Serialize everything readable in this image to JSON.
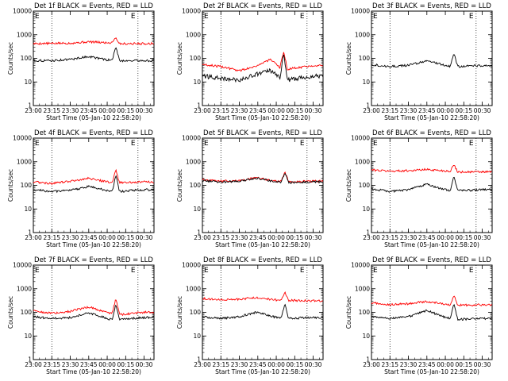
{
  "chart_data": [
    {
      "type": "line",
      "title": "Det 1f BLACK = Events, RED = LLD",
      "ylabel": "Counts/sec",
      "xlabel": "Start Time (05-Jan-10 22:58:20)",
      "x_ticks": [
        "23:00",
        "23:15",
        "23:30",
        "23:45",
        "00:00",
        "00:15",
        "00:30"
      ],
      "y_ticks": [
        "1",
        "10",
        "100",
        "1000",
        "10000"
      ],
      "ylim": [
        1,
        10000
      ],
      "y_scale": "log",
      "vlines": [
        "23:15",
        "00:25"
      ],
      "flags": [
        "E",
        "E"
      ],
      "series": [
        {
          "name": "RED",
          "color": "#ff0000",
          "x": [
            "23:00",
            "23:30",
            "23:45",
            "00:03",
            "00:07",
            "00:10",
            "00:30"
          ],
          "values": [
            420,
            440,
            500,
            450,
            750,
            420,
            420
          ]
        },
        {
          "name": "BLACK",
          "color": "#000000",
          "x": [
            "23:00",
            "23:15",
            "23:30",
            "23:45",
            "00:00",
            "00:04",
            "00:07",
            "00:10",
            "00:30"
          ],
          "values": [
            80,
            80,
            90,
            120,
            85,
            85,
            300,
            80,
            80
          ]
        }
      ]
    },
    {
      "type": "line",
      "title": "Det 2f BLACK = Events, RED = LLD",
      "ylabel": "Counts/sec",
      "xlabel": "Start Time (05-Jan-10 22:58:20)",
      "x_ticks": [
        "23:00",
        "23:15",
        "23:30",
        "23:45",
        "00:00",
        "00:15",
        "00:30"
      ],
      "y_ticks": [
        "1",
        "10",
        "100",
        "1000",
        "10000"
      ],
      "ylim": [
        1,
        10000
      ],
      "y_scale": "log",
      "vlines": [
        "23:15",
        "00:25"
      ],
      "flags": [
        "E",
        "E"
      ],
      "series": [
        {
          "name": "RED",
          "color": "#ff0000",
          "x": [
            "23:00",
            "23:15",
            "23:30",
            "23:45",
            "23:55",
            "00:03",
            "00:06",
            "00:09",
            "00:30"
          ],
          "values": [
            55,
            45,
            30,
            50,
            90,
            40,
            200,
            35,
            50
          ]
        },
        {
          "name": "BLACK",
          "color": "#000000",
          "x": [
            "23:00",
            "23:15",
            "23:30",
            "23:45",
            "23:55",
            "00:03",
            "00:06",
            "00:09",
            "00:30"
          ],
          "values": [
            18,
            14,
            12,
            22,
            30,
            15,
            170,
            12,
            18
          ]
        }
      ]
    },
    {
      "type": "line",
      "title": "Det 3f BLACK = Events, RED = LLD",
      "ylabel": "Counts/sec",
      "xlabel": "Start Time (05-Jan-10 22:58:20)",
      "x_ticks": [
        "23:00",
        "23:15",
        "23:30",
        "23:45",
        "00:00",
        "00:15",
        "00:30"
      ],
      "y_ticks": [
        "1",
        "10",
        "100",
        "1000",
        "10000"
      ],
      "ylim": [
        1,
        10000
      ],
      "y_scale": "log",
      "vlines": [
        "23:15",
        "00:25"
      ],
      "flags": [
        "E",
        "E"
      ],
      "series": [
        {
          "name": "BLACK",
          "color": "#000000",
          "x": [
            "23:00",
            "23:15",
            "23:30",
            "23:45",
            "00:00",
            "00:04",
            "00:07",
            "00:10",
            "00:30"
          ],
          "values": [
            55,
            45,
            50,
            80,
            50,
            45,
            170,
            45,
            50
          ]
        }
      ]
    },
    {
      "type": "line",
      "title": "Det 4f BLACK = Events, RED = LLD",
      "ylabel": "Counts/sec",
      "xlabel": "Start Time (05-Jan-10 22:58:20)",
      "x_ticks": [
        "23:00",
        "23:15",
        "23:30",
        "23:45",
        "00:00",
        "00:15",
        "00:30"
      ],
      "y_ticks": [
        "1",
        "10",
        "100",
        "1000",
        "10000"
      ],
      "ylim": [
        1,
        10000
      ],
      "y_scale": "log",
      "vlines": [
        "23:15",
        "00:25"
      ],
      "flags": [
        "E",
        "E"
      ],
      "series": [
        {
          "name": "RED",
          "color": "#ff0000",
          "x": [
            "23:00",
            "23:15",
            "23:30",
            "23:45",
            "00:00",
            "00:04",
            "00:07",
            "00:10",
            "00:30"
          ],
          "values": [
            140,
            120,
            150,
            200,
            140,
            130,
            450,
            130,
            140
          ]
        },
        {
          "name": "BLACK",
          "color": "#000000",
          "x": [
            "23:00",
            "23:15",
            "23:30",
            "23:45",
            "00:00",
            "00:04",
            "00:07",
            "00:10",
            "00:30"
          ],
          "values": [
            65,
            55,
            60,
            90,
            60,
            55,
            260,
            55,
            65
          ]
        }
      ]
    },
    {
      "type": "line",
      "title": "Det 5f BLACK = Events, RED = LLD",
      "ylabel": "Counts/sec",
      "xlabel": "Start Time (05-Jan-10 22:58:20)",
      "x_ticks": [
        "23:00",
        "23:15",
        "23:30",
        "23:45",
        "00:00",
        "00:15",
        "00:30"
      ],
      "y_ticks": [
        "1",
        "10",
        "100",
        "1000",
        "10000"
      ],
      "ylim": [
        1,
        10000
      ],
      "y_scale": "log",
      "vlines": [
        "23:15",
        "00:25"
      ],
      "flags": [
        "E",
        "E"
      ],
      "series": [
        {
          "name": "RED",
          "color": "#ff0000",
          "x": [
            "23:00",
            "23:15",
            "23:30",
            "23:45",
            "00:00",
            "00:04",
            "00:07",
            "00:10",
            "00:30"
          ],
          "values": [
            170,
            150,
            160,
            210,
            150,
            150,
            380,
            140,
            150
          ]
        },
        {
          "name": "BLACK",
          "color": "#000000",
          "x": [
            "23:00",
            "23:15",
            "23:30",
            "23:45",
            "00:00",
            "00:04",
            "00:07",
            "00:10",
            "00:30"
          ],
          "values": [
            160,
            140,
            150,
            200,
            140,
            140,
            330,
            130,
            140
          ]
        }
      ]
    },
    {
      "type": "line",
      "title": "Det 6f BLACK = Events, RED = LLD",
      "ylabel": "Counts/sec",
      "xlabel": "Start Time (05-Jan-10 22:58:20)",
      "x_ticks": [
        "23:00",
        "23:15",
        "23:30",
        "23:45",
        "00:00",
        "00:15",
        "00:30"
      ],
      "y_ticks": [
        "1",
        "10",
        "100",
        "1000",
        "10000"
      ],
      "ylim": [
        1,
        10000
      ],
      "y_scale": "log",
      "vlines": [
        "23:15",
        "00:25"
      ],
      "flags": [
        "E",
        "E"
      ],
      "series": [
        {
          "name": "RED",
          "color": "#ff0000",
          "x": [
            "23:00",
            "23:15",
            "23:30",
            "23:45",
            "00:00",
            "00:04",
            "00:07",
            "00:10",
            "00:30"
          ],
          "values": [
            450,
            400,
            420,
            470,
            410,
            400,
            750,
            370,
            370
          ]
        },
        {
          "name": "BLACK",
          "color": "#000000",
          "x": [
            "23:00",
            "23:15",
            "23:30",
            "23:45",
            "00:00",
            "00:04",
            "00:07",
            "00:10",
            "00:30"
          ],
          "values": [
            70,
            55,
            65,
            110,
            65,
            60,
            250,
            60,
            65
          ]
        }
      ]
    },
    {
      "type": "line",
      "title": "Det 7f BLACK = Events, RED = LLD",
      "ylabel": "Counts/sec",
      "xlabel": "Start Time (05-Jan-10 22:58:20)",
      "x_ticks": [
        "23:00",
        "23:15",
        "23:30",
        "23:45",
        "00:00",
        "00:15",
        "00:30"
      ],
      "y_ticks": [
        "1",
        "10",
        "100",
        "1000",
        "10000"
      ],
      "ylim": [
        1,
        10000
      ],
      "y_scale": "log",
      "vlines": [
        "23:15",
        "00:25"
      ],
      "flags": [
        "E",
        "E"
      ],
      "series": [
        {
          "name": "RED",
          "color": "#ff0000",
          "x": [
            "23:00",
            "23:15",
            "23:30",
            "23:45",
            "00:00",
            "00:04",
            "00:07",
            "00:10",
            "00:30"
          ],
          "values": [
            120,
            90,
            110,
            170,
            100,
            90,
            400,
            80,
            100
          ]
        },
        {
          "name": "BLACK",
          "color": "#000000",
          "x": [
            "23:00",
            "23:15",
            "23:30",
            "23:45",
            "00:00",
            "00:04",
            "00:07",
            "00:10",
            "00:30"
          ],
          "values": [
            65,
            55,
            60,
            95,
            55,
            50,
            230,
            50,
            60
          ]
        }
      ]
    },
    {
      "type": "line",
      "title": "Det 8f BLACK = Events, RED = LLD",
      "ylabel": "Counts/sec",
      "xlabel": "Start Time (05-Jan-10 22:58:20)",
      "x_ticks": [
        "23:00",
        "23:15",
        "23:30",
        "23:45",
        "00:00",
        "00:15",
        "00:30"
      ],
      "y_ticks": [
        "1",
        "10",
        "100",
        "1000",
        "10000"
      ],
      "ylim": [
        1,
        10000
      ],
      "y_scale": "log",
      "vlines": [
        "23:15",
        "00:25"
      ],
      "flags": [
        "E",
        "E"
      ],
      "series": [
        {
          "name": "RED",
          "color": "#ff0000",
          "x": [
            "23:00",
            "23:15",
            "23:30",
            "23:45",
            "00:00",
            "00:04",
            "00:07",
            "00:10",
            "00:30"
          ],
          "values": [
            380,
            340,
            360,
            420,
            330,
            320,
            700,
            320,
            310
          ]
        },
        {
          "name": "BLACK",
          "color": "#000000",
          "x": [
            "23:00",
            "23:15",
            "23:30",
            "23:45",
            "00:00",
            "00:04",
            "00:07",
            "00:10",
            "00:30"
          ],
          "values": [
            65,
            55,
            65,
            105,
            60,
            55,
            220,
            55,
            60
          ]
        }
      ]
    },
    {
      "type": "line",
      "title": "Det 9f BLACK = Events, RED = LLD",
      "ylabel": "Counts/sec",
      "xlabel": "Start Time (05-Jan-10 22:58:20)",
      "x_ticks": [
        "23:00",
        "23:15",
        "23:30",
        "23:45",
        "00:00",
        "00:15",
        "00:30"
      ],
      "y_ticks": [
        "1",
        "10",
        "100",
        "1000",
        "10000"
      ],
      "ylim": [
        1,
        10000
      ],
      "y_scale": "log",
      "vlines": [
        "23:15",
        "00:25"
      ],
      "flags": [
        "E",
        "E"
      ],
      "series": [
        {
          "name": "RED",
          "color": "#ff0000",
          "x": [
            "23:00",
            "23:15",
            "23:30",
            "23:45",
            "00:00",
            "00:04",
            "00:07",
            "00:10",
            "00:30"
          ],
          "values": [
            250,
            210,
            230,
            290,
            220,
            210,
            500,
            200,
            210
          ]
        },
        {
          "name": "BLACK",
          "color": "#000000",
          "x": [
            "23:00",
            "23:15",
            "23:30",
            "23:45",
            "00:00",
            "00:04",
            "00:07",
            "00:10",
            "00:30"
          ],
          "values": [
            70,
            55,
            65,
            120,
            60,
            55,
            230,
            50,
            55
          ]
        }
      ]
    }
  ]
}
